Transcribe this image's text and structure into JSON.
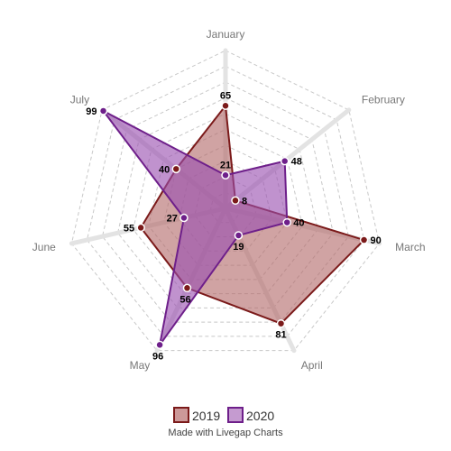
{
  "chart_data": {
    "type": "radar",
    "categories": [
      "January",
      "February",
      "March",
      "April",
      "May",
      "June",
      "July"
    ],
    "series": [
      {
        "name": "2019",
        "values": [
          65,
          8,
          90,
          81,
          56,
          55,
          40
        ],
        "color": "#7b1a1a",
        "fill": "#b36b6b"
      },
      {
        "name": "2020",
        "values": [
          21,
          48,
          40,
          19,
          96,
          27,
          99
        ],
        "color": "#6e1f8a",
        "fill": "#9a4fb0"
      }
    ],
    "rlim": [
      0,
      100
    ],
    "grid": true,
    "legend_position": "bottom"
  },
  "credit": "Made with Livegap Charts"
}
